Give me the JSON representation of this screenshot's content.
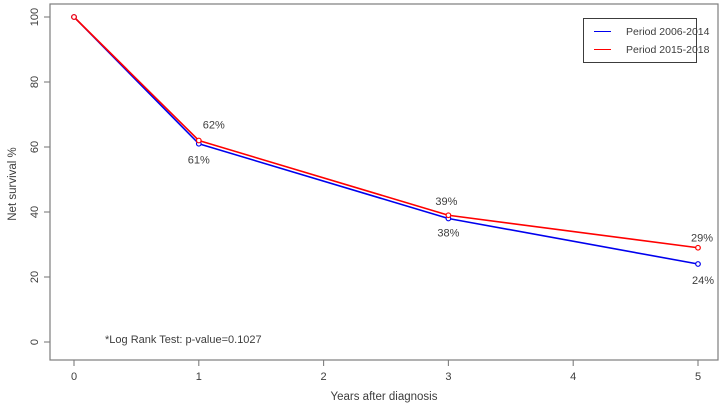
{
  "chart_data": {
    "type": "line",
    "title": "",
    "xlabel": "Years after diagnosis",
    "ylabel": "Net survival %",
    "x": [
      0,
      1,
      3,
      5
    ],
    "series": [
      {
        "name": "Period 2006-2014",
        "color": "#0000EE",
        "values": [
          100,
          61,
          38,
          24
        ],
        "point_labels": [
          "",
          "61%",
          "38%",
          "24%"
        ]
      },
      {
        "name": "Period 2015-2018",
        "color": "#FF0000",
        "values": [
          100,
          62,
          39,
          29
        ],
        "point_labels": [
          "",
          "62%",
          "39%",
          "29%"
        ]
      }
    ],
    "xticks": [
      0,
      1,
      2,
      3,
      4,
      5
    ],
    "yticks": [
      0,
      20,
      40,
      60,
      80,
      100
    ],
    "xlim": [
      0,
      5
    ],
    "ylim": [
      0,
      100
    ],
    "grid": false,
    "marker": "open-circle",
    "legend_position": "top-right",
    "annotation": "*Log Rank Test: p-value=0.1027"
  },
  "colors": {
    "axis": "#7d7d7d",
    "text": "#3d3d3d",
    "background": "#ffffff"
  }
}
